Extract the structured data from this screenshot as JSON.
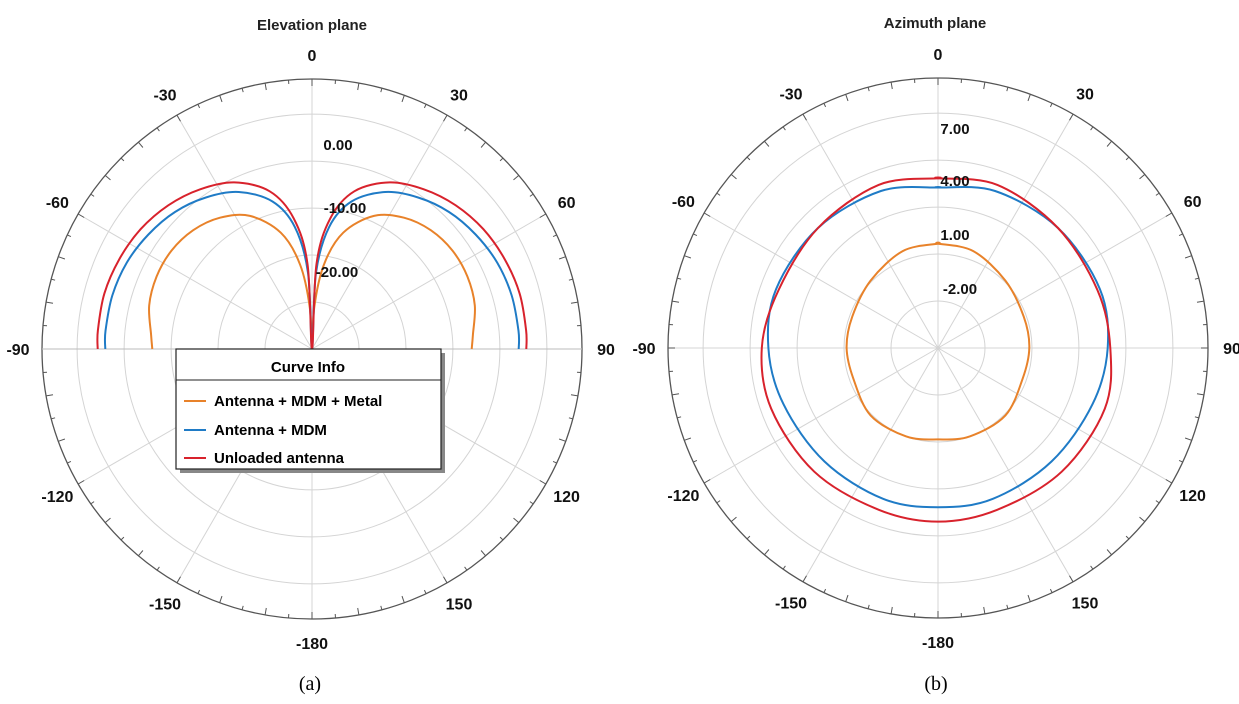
{
  "captions": [
    "(a)",
    "(b)"
  ],
  "legend": {
    "title": "Curve Info",
    "entries": [
      "Antenna + MDM + Metal",
      "Antenna + MDM",
      "Unloaded antenna"
    ]
  },
  "colors": {
    "Antenna + MDM + Metal": "#e8822a",
    "Antenna + MDM": "#1f7bc6",
    "Unloaded antenna": "#d8222c",
    "grid": "#d4d4d4",
    "outer_ring": "#555555"
  },
  "chart_data": [
    {
      "type": "polar",
      "title": "Elevation plane",
      "angle_labels": [
        "0",
        "30",
        "60",
        "90",
        "120",
        "150",
        "-180",
        "-150",
        "-120",
        "-90",
        "-60",
        "-30"
      ],
      "radial_labels": [
        "0.00",
        "-10.00",
        "-20.00"
      ],
      "radial_range": [
        -30,
        10
      ],
      "series": [
        {
          "name": "Antenna + MDM + Metal",
          "theta": [
            -90,
            -85,
            -75,
            -65,
            -55,
            -45,
            -35,
            -25,
            -15,
            -8,
            -3,
            0,
            3,
            8,
            15,
            25,
            35,
            45,
            55,
            65,
            75,
            85,
            90
          ],
          "r": [
            -2.8,
            -2.5,
            -1.3,
            -0.8,
            -0.8,
            -1.4,
            -2.7,
            -5.0,
            -9.5,
            -15.5,
            -23.0,
            -30.0,
            -23.0,
            -15.5,
            -9.5,
            -5.0,
            -2.7,
            -1.4,
            -0.8,
            -0.8,
            -1.3,
            -2.5,
            -2.8
          ]
        },
        {
          "name": "Antenna + MDM",
          "theta": [
            -90,
            -85,
            -75,
            -65,
            -55,
            -45,
            -35,
            -25,
            -15,
            -8,
            -3,
            0,
            3,
            8,
            15,
            25,
            35,
            45,
            55,
            65,
            75,
            85,
            90
          ],
          "r": [
            5.2,
            5.3,
            5.2,
            4.8,
            4.0,
            3.0,
            1.5,
            -0.5,
            -4.0,
            -9.0,
            -17.0,
            -30.0,
            -17.0,
            -9.0,
            -4.0,
            -0.5,
            1.5,
            3.0,
            4.0,
            4.8,
            5.2,
            5.3,
            5.2
          ]
        },
        {
          "name": "Unloaded antenna",
          "theta": [
            -90,
            -85,
            -75,
            -65,
            -55,
            -45,
            -35,
            -25,
            -15,
            -8,
            -3,
            0,
            3,
            8,
            15,
            25,
            35,
            45,
            55,
            65,
            75,
            85,
            90
          ],
          "r": [
            6.5,
            6.6,
            6.6,
            6.2,
            5.6,
            4.6,
            3.2,
            1.3,
            -2.2,
            -7.5,
            -15.5,
            -30.0,
            -15.5,
            -7.5,
            -2.2,
            1.3,
            3.2,
            4.6,
            5.6,
            6.2,
            6.6,
            6.6,
            6.5
          ]
        }
      ]
    },
    {
      "type": "polar",
      "title": "Azimuth plane",
      "angle_labels": [
        "0",
        "30",
        "60",
        "90",
        "120",
        "150",
        "-180",
        "-150",
        "-120",
        "-90",
        "-60",
        "-30"
      ],
      "radial_labels": [
        "7.00",
        "4.00",
        "1.00",
        "-2.00"
      ],
      "radial_range": [
        -8,
        10
      ],
      "series": [
        {
          "name": "Antenna + MDM + Metal",
          "theta": [
            0,
            20,
            45,
            70,
            90,
            110,
            135,
            160,
            180,
            200,
            225,
            250,
            270,
            290,
            315,
            340,
            360
          ],
          "r": [
            0.0,
            -0.1,
            -0.7,
            -1.0,
            -1.0,
            -1.1,
            -0.7,
            -0.8,
            -1.0,
            -0.8,
            -0.7,
            -1.1,
            -1.0,
            -1.0,
            -0.7,
            -0.1,
            0.0
          ]
        },
        {
          "name": "Antenna + MDM",
          "theta": [
            0,
            20,
            45,
            70,
            90,
            110,
            135,
            160,
            180,
            200,
            225,
            250,
            270,
            290,
            315,
            340,
            360
          ],
          "r": [
            4.3,
            4.8,
            5.0,
            5.2,
            5.0,
            4.6,
            4.3,
            4.3,
            4.2,
            4.3,
            4.3,
            4.6,
            5.0,
            5.2,
            5.0,
            4.8,
            4.3
          ]
        },
        {
          "name": "Unloaded antenna",
          "theta": [
            0,
            20,
            45,
            70,
            90,
            110,
            135,
            160,
            180,
            200,
            225,
            250,
            270,
            290,
            315,
            340,
            360
          ],
          "r": [
            5.0,
            5.3,
            5.0,
            5.0,
            5.2,
            5.6,
            5.4,
            5.2,
            5.3,
            5.2,
            5.4,
            5.6,
            5.5,
            5.0,
            5.0,
            5.3,
            5.0
          ]
        }
      ]
    }
  ]
}
